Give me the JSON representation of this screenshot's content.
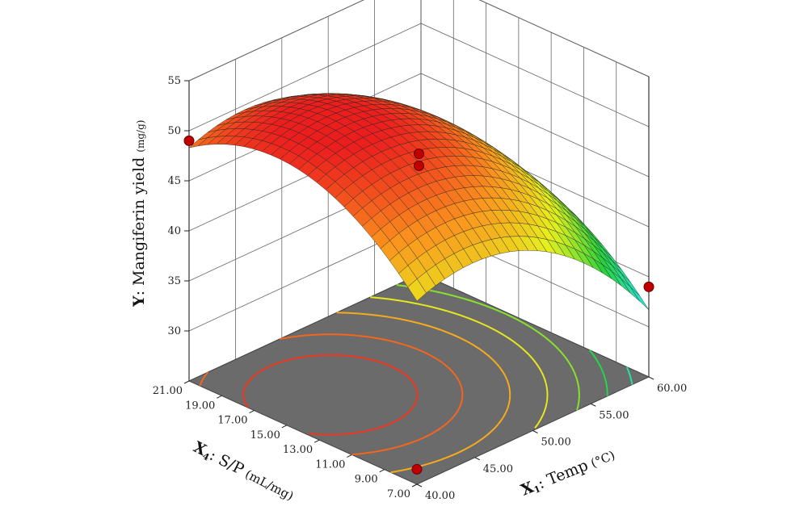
{
  "chart_data": {
    "type": "surface3d",
    "title": "",
    "x_axis": {
      "symbol": "X",
      "subscript": "1",
      "label": ": Temp",
      "unit": "(°C)",
      "ticks": [
        "40.00",
        "45.00",
        "50.00",
        "55.00",
        "60.00"
      ],
      "range": [
        40,
        60
      ]
    },
    "y_axis": {
      "symbol": "X",
      "subscript": "4",
      "label": ": S/P",
      "unit": "(mL/mg)",
      "ticks": [
        "7.00",
        "9.00",
        "11.00",
        "13.00",
        "15.00",
        "17.00",
        "19.00",
        "21.00"
      ],
      "range": [
        7,
        21
      ]
    },
    "z_axis": {
      "symbol": "Y",
      "label": ": Mangiferin  yield",
      "unit": "(mg/g)",
      "ticks": [
        "30",
        "35",
        "40",
        "45",
        "50",
        "55"
      ],
      "range": [
        25,
        55
      ]
    },
    "surface_model": {
      "description": "quadratic response surface",
      "intercept": 50.7,
      "b_temp": -5.8,
      "b_sp": 2.5,
      "b_temp2": -5.5,
      "b_sp2": -5.2,
      "b_temp_sp": 0.0
    },
    "design_points": [
      {
        "temp": 40,
        "sp": 21,
        "yield": 49.0
      },
      {
        "temp": 50,
        "sp": 14,
        "yield": 47.5
      },
      {
        "temp": 50,
        "sp": 14,
        "yield": 46.3
      },
      {
        "temp": 60,
        "sp": 7,
        "yield": 34.0
      },
      {
        "temp": 40,
        "sp": 7,
        "yield": 26.5
      }
    ],
    "contour_levels": [
      28,
      31,
      34,
      37,
      40,
      43,
      46,
      49,
      51
    ]
  }
}
